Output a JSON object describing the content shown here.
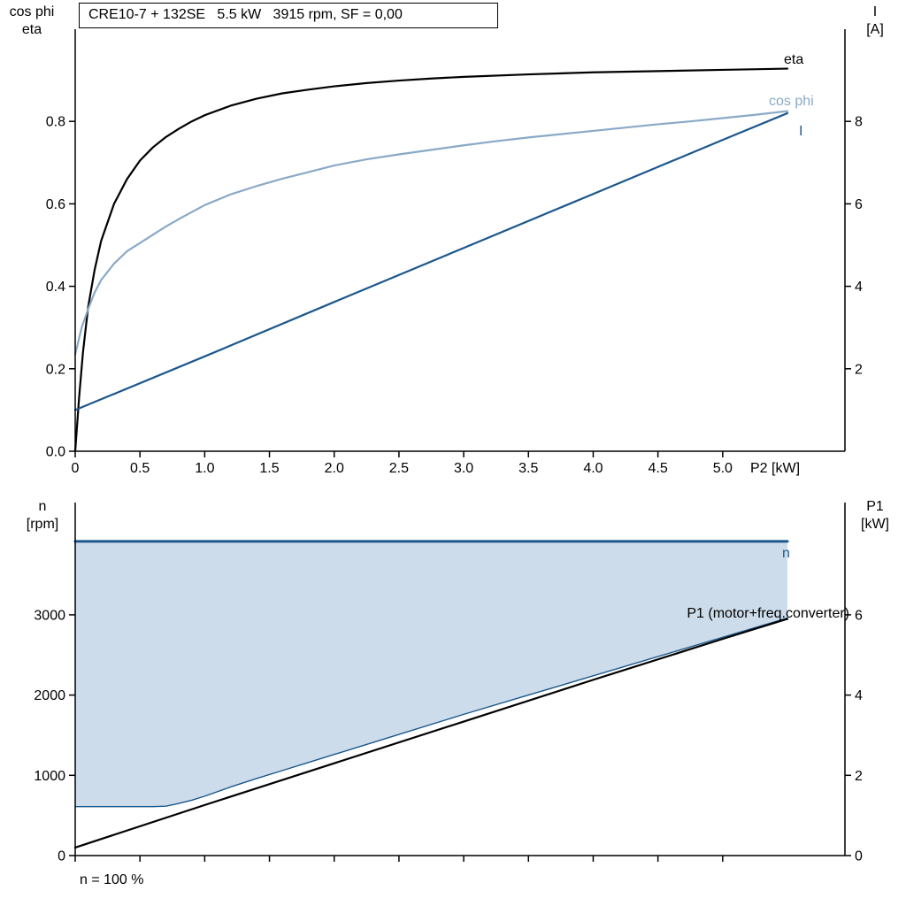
{
  "colors": {
    "black": "#000000",
    "dark_blue": "#1c578c",
    "light_blue": "#8aa9c7",
    "fill_blue": "#cddcea"
  },
  "chart_data": [
    {
      "type": "line",
      "title": "CRE10-7 + 132SE   5.5 kW   3915 rpm, SF = 0,00",
      "left_axis_label": {
        "line1": "cos phi",
        "line2": "eta"
      },
      "right_axis_label": {
        "line1": "I",
        "line2": "[A]"
      },
      "x_axis_label": "P2 [kW]",
      "x_range": [
        0,
        5.5
      ],
      "left_range": [
        0,
        1.0
      ],
      "right_range": [
        0,
        10
      ],
      "left_ticks": [
        "0.0",
        "0.2",
        "0.4",
        "0.6",
        "0.8"
      ],
      "right_ticks": [
        "2",
        "4",
        "6",
        "8"
      ],
      "x_ticks": [
        "0",
        "0.5",
        "1.0",
        "1.5",
        "2.0",
        "2.5",
        "3.0",
        "3.5",
        "4.0",
        "4.5",
        "5.0"
      ],
      "series": [
        {
          "id": "eta-curve",
          "name": "eta",
          "axis": "left",
          "color": "black",
          "points": [
            [
              0,
              0
            ],
            [
              0.03,
              0.13
            ],
            [
              0.06,
              0.24
            ],
            [
              0.1,
              0.35
            ],
            [
              0.15,
              0.44
            ],
            [
              0.2,
              0.51
            ],
            [
              0.3,
              0.6
            ],
            [
              0.4,
              0.66
            ],
            [
              0.5,
              0.705
            ],
            [
              0.6,
              0.737
            ],
            [
              0.7,
              0.762
            ],
            [
              0.8,
              0.782
            ],
            [
              0.9,
              0.8
            ],
            [
              1.0,
              0.815
            ],
            [
              1.2,
              0.838
            ],
            [
              1.4,
              0.855
            ],
            [
              1.6,
              0.868
            ],
            [
              1.8,
              0.877
            ],
            [
              2.0,
              0.885
            ],
            [
              2.25,
              0.893
            ],
            [
              2.5,
              0.899
            ],
            [
              2.75,
              0.904
            ],
            [
              3.0,
              0.908
            ],
            [
              3.5,
              0.914
            ],
            [
              4.0,
              0.919
            ],
            [
              4.5,
              0.922
            ],
            [
              5.0,
              0.925
            ],
            [
              5.5,
              0.928
            ]
          ]
        },
        {
          "id": "cos-phi-curve",
          "name": "cos phi",
          "axis": "left",
          "color": "light_blue",
          "points": [
            [
              0,
              0.235
            ],
            [
              0.05,
              0.3
            ],
            [
              0.1,
              0.345
            ],
            [
              0.15,
              0.385
            ],
            [
              0.2,
              0.415
            ],
            [
              0.3,
              0.455
            ],
            [
              0.4,
              0.485
            ],
            [
              0.5,
              0.505
            ],
            [
              0.6,
              0.525
            ],
            [
              0.7,
              0.545
            ],
            [
              0.8,
              0.563
            ],
            [
              0.9,
              0.58
            ],
            [
              1.0,
              0.597
            ],
            [
              1.2,
              0.623
            ],
            [
              1.4,
              0.643
            ],
            [
              1.6,
              0.661
            ],
            [
              1.8,
              0.677
            ],
            [
              2.0,
              0.693
            ],
            [
              2.25,
              0.708
            ],
            [
              2.5,
              0.72
            ],
            [
              2.75,
              0.731
            ],
            [
              3.0,
              0.742
            ],
            [
              3.25,
              0.752
            ],
            [
              3.5,
              0.761
            ],
            [
              3.75,
              0.769
            ],
            [
              4.0,
              0.777
            ],
            [
              4.25,
              0.785
            ],
            [
              4.5,
              0.793
            ],
            [
              4.75,
              0.8
            ],
            [
              5.0,
              0.808
            ],
            [
              5.25,
              0.816
            ],
            [
              5.5,
              0.825
            ]
          ]
        },
        {
          "id": "current-curve",
          "name": "I",
          "axis": "right",
          "color": "dark_blue",
          "points": [
            [
              0,
              1.0
            ],
            [
              1.0,
              2.3
            ],
            [
              2.0,
              3.62
            ],
            [
              3.0,
              4.93
            ],
            [
              4.0,
              6.24
            ],
            [
              5.0,
              7.55
            ],
            [
              5.5,
              8.2
            ]
          ]
        }
      ]
    },
    {
      "type": "line",
      "left_axis_label": {
        "line1": "n",
        "line2": "[rpm]"
      },
      "right_axis_label": {
        "line1": "P1",
        "line2": "[kW]"
      },
      "footnote": "n = 100 %",
      "x_range": [
        0,
        5.5
      ],
      "left_range": [
        0,
        4300
      ],
      "right_range": [
        0,
        8.6
      ],
      "left_ticks": [
        "0",
        "1000",
        "2000",
        "3000"
      ],
      "right_ticks": [
        "0",
        "2",
        "4",
        "6"
      ],
      "x_ticks": [
        "0",
        "0.5",
        "1.0",
        "1.5",
        "2.0",
        "2.5",
        "3.0",
        "3.5",
        "4.0",
        "4.5",
        "5.0"
      ],
      "series": [
        {
          "id": "speed-line",
          "name": "n",
          "axis": "left",
          "color": "dark_blue",
          "points": [
            [
              0,
              3915
            ],
            [
              5.5,
              3915
            ]
          ]
        },
        {
          "id": "speed-range-lower-bound",
          "name": "",
          "axis": "left",
          "color": "dark_blue",
          "points": [
            [
              0,
              610
            ],
            [
              0.6,
              610
            ],
            [
              0.7,
              615
            ],
            [
              0.8,
              650
            ],
            [
              0.9,
              690
            ],
            [
              1.0,
              740
            ],
            [
              1.2,
              855
            ],
            [
              1.4,
              960
            ],
            [
              1.6,
              1060
            ],
            [
              1.8,
              1160
            ],
            [
              2.0,
              1260
            ],
            [
              2.5,
              1510
            ],
            [
              3.0,
              1760
            ],
            [
              3.5,
              2000
            ],
            [
              4.0,
              2240
            ],
            [
              4.5,
              2480
            ],
            [
              5.0,
              2720
            ],
            [
              5.5,
              2960
            ]
          ]
        },
        {
          "id": "p1-curve",
          "name": "P1 (motor+freq.converter)",
          "axis": "right",
          "color": "black",
          "points": [
            [
              0,
              0.2
            ],
            [
              1.0,
              1.26
            ],
            [
              2.0,
              2.3
            ],
            [
              3.0,
              3.34
            ],
            [
              4.0,
              4.38
            ],
            [
              5.0,
              5.4
            ],
            [
              5.5,
              5.9
            ]
          ]
        }
      ]
    }
  ]
}
